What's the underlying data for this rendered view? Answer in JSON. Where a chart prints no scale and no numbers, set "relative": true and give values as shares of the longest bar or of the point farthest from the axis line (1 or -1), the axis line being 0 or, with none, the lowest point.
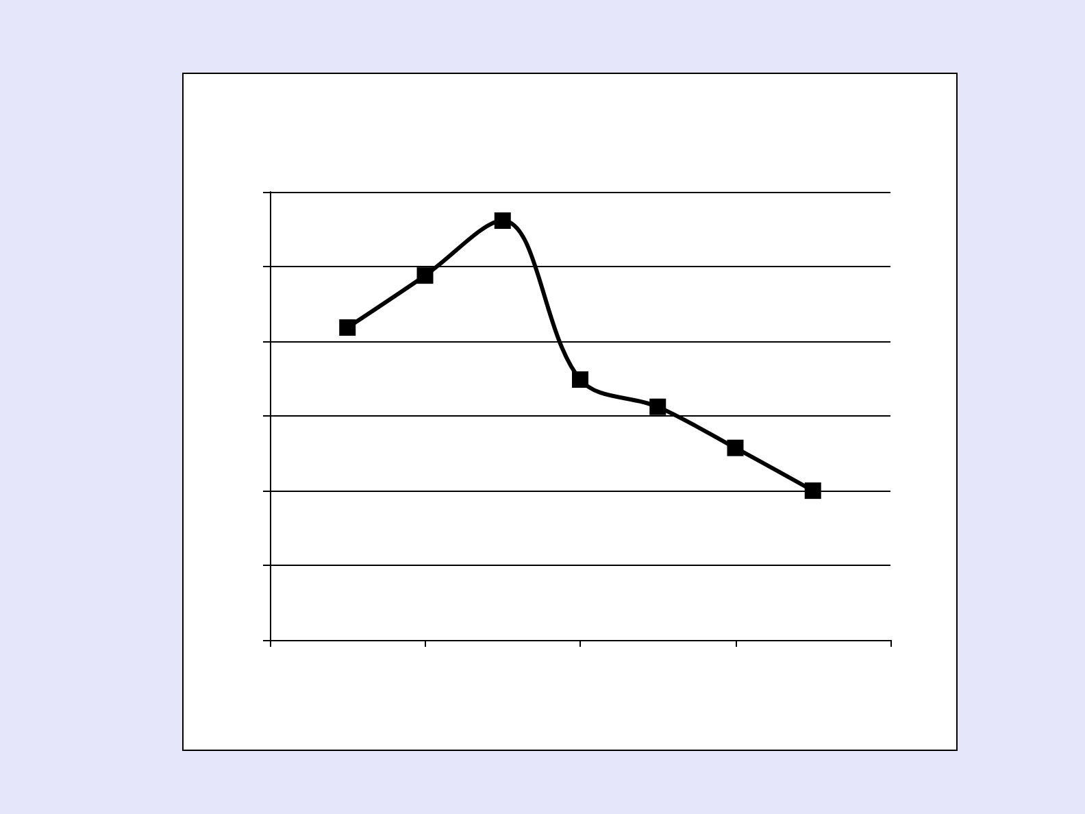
{
  "chart_data": {
    "type": "line",
    "relative": true,
    "categories": [
      null,
      null,
      null,
      null,
      null,
      null,
      null,
      null,
      null
    ],
    "series": [
      {
        "color": "#000000",
        "values": [
          null,
          0.745,
          0.869,
          1,
          0.621,
          0.556,
          0.458,
          0.356,
          null
        ]
      }
    ],
    "marker": "square",
    "line_style": "solid",
    "grid": "y"
  }
}
